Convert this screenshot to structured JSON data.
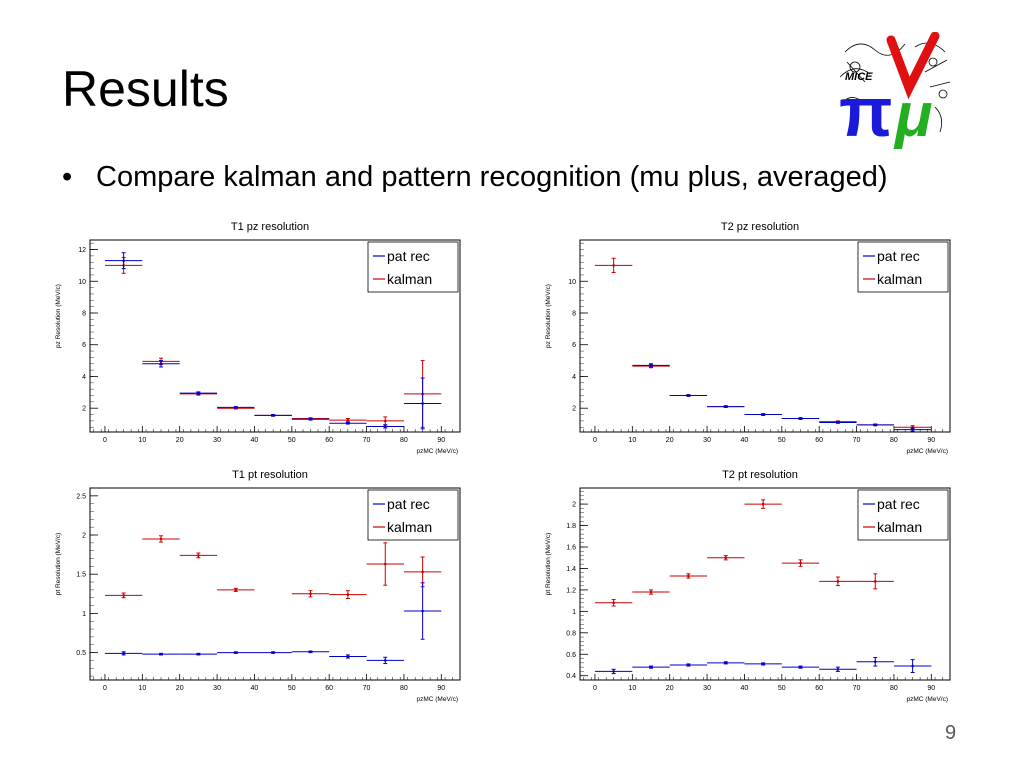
{
  "slide": {
    "title": "Results",
    "bullet": "Compare kalman and pattern recognition (mu plus, averaged)",
    "page_number": "9"
  },
  "logo": {
    "icon": "mice-pi-nu-mu-logo",
    "text": "MICE",
    "colors": {
      "pi": "#1a1ad9",
      "nu": "#e01010",
      "mu": "#22b022"
    }
  },
  "colors": {
    "pat_rec": "#0000cc",
    "kalman": "#cc0000"
  },
  "chart_data": [
    {
      "type": "scatter",
      "title": "T1 pz resolution",
      "ylabel": "pz Resolution (MeV/c)",
      "xlabel": "pzMC (MeV/c)",
      "xlim": [
        -4,
        95
      ],
      "ylim": [
        0.5,
        12.6
      ],
      "xticks": [
        0,
        10,
        20,
        30,
        40,
        50,
        60,
        70,
        80,
        90
      ],
      "yticks": [
        2,
        4,
        6,
        8,
        10,
        12
      ],
      "legend": "top-right",
      "series": [
        {
          "name": "pat rec",
          "color": "#0000cc",
          "x": [
            5,
            15,
            25,
            35,
            45,
            55,
            65,
            75,
            85
          ],
          "y": [
            11.3,
            4.8,
            2.95,
            2.05,
            1.55,
            1.3,
            1.05,
            0.85,
            2.3
          ],
          "yerr": [
            0.5,
            0.2,
            0.08,
            0.05,
            0.05,
            0.05,
            0.05,
            0.1,
            1.6
          ]
        },
        {
          "name": "kalman",
          "color": "#cc0000",
          "x": [
            5,
            15,
            25,
            35,
            45,
            55,
            65,
            75,
            85
          ],
          "y": [
            11.0,
            4.95,
            2.9,
            2.0,
            1.55,
            1.35,
            1.25,
            1.2,
            2.9
          ],
          "yerr": [
            0.5,
            0.2,
            0.08,
            0.05,
            0.05,
            0.05,
            0.1,
            0.25,
            2.1
          ]
        }
      ]
    },
    {
      "type": "scatter",
      "title": "T2 pz resolution",
      "ylabel": "pz Resolution (MeV/c)",
      "xlabel": "pzMC (MeV/c)",
      "xlim": [
        -4,
        95
      ],
      "ylim": [
        0.5,
        12.6
      ],
      "xticks": [
        0,
        10,
        20,
        30,
        40,
        50,
        60,
        70,
        80,
        90
      ],
      "yticks": [
        2,
        4,
        6,
        8,
        10
      ],
      "legend": "top-right",
      "series": [
        {
          "name": "pat rec",
          "color": "#0000cc",
          "x": [
            15,
            25,
            35,
            45,
            55,
            65,
            75,
            85
          ],
          "y": [
            4.7,
            2.8,
            2.1,
            1.6,
            1.35,
            1.1,
            0.95,
            0.65
          ],
          "yerr": [
            0.1,
            0.05,
            0.05,
            0.05,
            0.05,
            0.05,
            0.05,
            0.1
          ]
        },
        {
          "name": "kalman",
          "color": "#cc0000",
          "x": [
            5,
            15,
            25,
            35,
            45,
            55,
            65,
            75,
            85
          ],
          "y": [
            11.0,
            4.65,
            2.8,
            2.1,
            1.6,
            1.35,
            1.15,
            0.95,
            0.8
          ],
          "yerr": [
            0.45,
            0.1,
            0.05,
            0.05,
            0.05,
            0.05,
            0.05,
            0.05,
            0.1
          ]
        }
      ]
    },
    {
      "type": "scatter",
      "title": "T1 pt resolution",
      "ylabel": "pt Resolution (MeV/c)",
      "xlabel": "pzMC (MeV/c)",
      "xlim": [
        -4,
        95
      ],
      "ylim": [
        0.15,
        2.6
      ],
      "xticks": [
        0,
        10,
        20,
        30,
        40,
        50,
        60,
        70,
        80,
        90
      ],
      "yticks": [
        0.5,
        1,
        1.5,
        2,
        2.5
      ],
      "legend": "top-right",
      "series": [
        {
          "name": "pat rec",
          "color": "#0000cc",
          "x": [
            5,
            15,
            25,
            35,
            45,
            55,
            65,
            75,
            85
          ],
          "y": [
            0.49,
            0.48,
            0.48,
            0.5,
            0.5,
            0.51,
            0.45,
            0.4,
            1.03
          ],
          "yerr": [
            0.02,
            0.01,
            0.01,
            0.01,
            0.01,
            0.01,
            0.02,
            0.04,
            0.36
          ]
        },
        {
          "name": "kalman",
          "color": "#cc0000",
          "x": [
            5,
            15,
            25,
            35,
            55,
            65,
            75,
            85
          ],
          "y": [
            1.23,
            1.95,
            1.74,
            1.3,
            1.25,
            1.24,
            1.63,
            1.53
          ],
          "yerr": [
            0.03,
            0.04,
            0.03,
            0.02,
            0.04,
            0.05,
            0.27,
            0.19
          ]
        }
      ]
    },
    {
      "type": "scatter",
      "title": "T2 pt resolution",
      "ylabel": "pt Resolution (MeV/c)",
      "xlabel": "pzMC (MeV/c)",
      "xlim": [
        -4,
        95
      ],
      "ylim": [
        0.36,
        2.15
      ],
      "xticks": [
        0,
        10,
        20,
        30,
        40,
        50,
        60,
        70,
        80,
        90
      ],
      "yticks": [
        0.4,
        0.6,
        0.8,
        1,
        1.2,
        1.4,
        1.6,
        1.8,
        2
      ],
      "legend": "top-right",
      "series": [
        {
          "name": "pat rec",
          "color": "#0000cc",
          "x": [
            5,
            15,
            25,
            35,
            45,
            55,
            65,
            75,
            85
          ],
          "y": [
            0.44,
            0.48,
            0.5,
            0.52,
            0.51,
            0.48,
            0.46,
            0.53,
            0.49
          ],
          "yerr": [
            0.02,
            0.01,
            0.01,
            0.01,
            0.01,
            0.01,
            0.02,
            0.04,
            0.06
          ]
        },
        {
          "name": "kalman",
          "color": "#cc0000",
          "x": [
            5,
            15,
            25,
            35,
            45,
            55,
            65,
            75
          ],
          "y": [
            1.08,
            1.18,
            1.33,
            1.5,
            2.0,
            1.45,
            1.28,
            1.28
          ],
          "yerr": [
            0.03,
            0.02,
            0.02,
            0.02,
            0.04,
            0.03,
            0.04,
            0.07
          ]
        }
      ]
    }
  ]
}
